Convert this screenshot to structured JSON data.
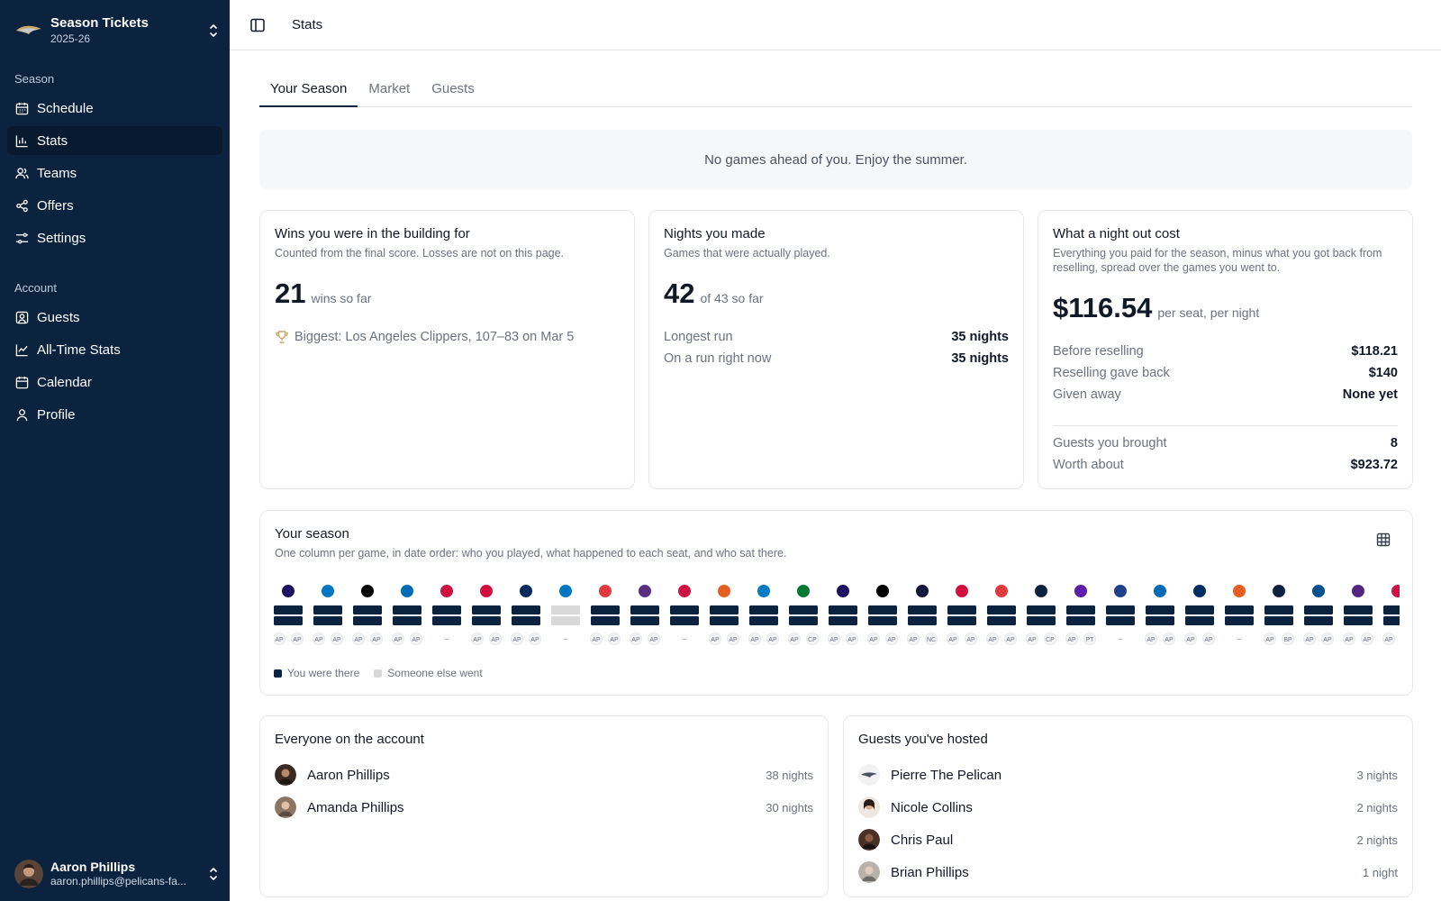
{
  "sidebar": {
    "team": {
      "name": "Season Tickets",
      "season": "2025-26"
    },
    "groups": [
      {
        "label": "Season"
      },
      {
        "label": "Account"
      }
    ],
    "items": [
      {
        "label": "Schedule",
        "icon": "calendar-days-icon"
      },
      {
        "label": "Stats",
        "icon": "bar-chart-icon",
        "active": true
      },
      {
        "label": "Teams",
        "icon": "users-icon"
      },
      {
        "label": "Offers",
        "icon": "share-icon"
      },
      {
        "label": "Settings",
        "icon": "sliders-icon"
      },
      {
        "label": "Guests",
        "icon": "user-square-icon"
      },
      {
        "label": "All-Time Stats",
        "icon": "line-chart-icon"
      },
      {
        "label": "Calendar",
        "icon": "calendar-icon"
      },
      {
        "label": "Profile",
        "icon": "user-icon"
      }
    ],
    "user": {
      "name": "Aaron Phillips",
      "email": "aaron.phillips@pelicans-fa..."
    }
  },
  "header": {
    "breadcrumb": "Stats"
  },
  "tabs": [
    {
      "label": "Your Season",
      "active": true
    },
    {
      "label": "Market"
    },
    {
      "label": "Guests"
    }
  ],
  "banner": "No games ahead of you. Enjoy the summer.",
  "wins": {
    "title": "Wins you were in the building for",
    "subtitle": "Counted from the final score. Losses are not on this page.",
    "value": "21",
    "suffix": "wins so far",
    "biggest": "Biggest: Los Angeles Clippers, 107–83 on Mar 5"
  },
  "nights": {
    "title": "Nights you made",
    "subtitle": "Games that were actually played.",
    "value": "42",
    "suffix": "of 43 so far",
    "rows": [
      {
        "label": "Longest run",
        "value": "35 nights"
      },
      {
        "label": "On a run right now",
        "value": "35 nights"
      }
    ]
  },
  "cost": {
    "title": "What a night out cost",
    "subtitle": "Everything you paid for the season, minus what you got back from reselling, spread over the games you went to.",
    "value": "$116.54",
    "suffix": "per seat, per night",
    "rows": [
      {
        "label": "Before reselling",
        "value": "$118.21"
      },
      {
        "label": "Reselling gave back",
        "value": "$140"
      },
      {
        "label": "Given away",
        "value": "None yet"
      }
    ],
    "guest_rows": [
      {
        "label": "Guests you brought",
        "value": "8"
      },
      {
        "label": "Worth about",
        "value": "$923.72"
      }
    ]
  },
  "season": {
    "title": "Your season",
    "subtitle": "One column per game, in date order: who you played, what happened to each seat, and who sat there.",
    "legend": [
      {
        "label": "You were there",
        "color": "#0c2340"
      },
      {
        "label": "Someone else went",
        "color": "#d9d9d9"
      }
    ],
    "games": [
      {
        "logo_color": "#1d1160",
        "seats": [
          "AP",
          "AP"
        ]
      },
      {
        "logo_color": "#0077c0",
        "seats": [
          "AP",
          "AP"
        ]
      },
      {
        "logo_color": "#000000",
        "seats": [
          "AP",
          "AP"
        ]
      },
      {
        "logo_color": "#006bb6",
        "seats": [
          "AP",
          "AP"
        ]
      },
      {
        "logo_color": "#ce1141",
        "seats": [
          "–"
        ]
      },
      {
        "logo_color": "#ce1141",
        "seats": [
          "AP",
          "AP"
        ]
      },
      {
        "logo_color": "#002b5c",
        "seats": [
          "AP",
          "AP"
        ]
      },
      {
        "logo_color": "#0077c0",
        "seats": [
          "–"
        ],
        "other": true
      },
      {
        "logo_color": "#e03a3e",
        "seats": [
          "AP",
          "AP"
        ]
      },
      {
        "logo_color": "#5a2d81",
        "seats": [
          "AP",
          "AP"
        ]
      },
      {
        "logo_color": "#ce1141",
        "seats": [
          "–"
        ]
      },
      {
        "logo_color": "#e56020",
        "seats": [
          "AP",
          "AP"
        ]
      },
      {
        "logo_color": "#007ac1",
        "seats": [
          "AP",
          "AP"
        ]
      },
      {
        "logo_color": "#007a33",
        "seats": [
          "AP",
          "CP"
        ]
      },
      {
        "logo_color": "#1d1160",
        "seats": [
          "AP",
          "AP"
        ]
      },
      {
        "logo_color": "#000000",
        "seats": [
          "AP",
          "AP"
        ]
      },
      {
        "logo_color": "#12173f",
        "seats": [
          "AP",
          "NC"
        ]
      },
      {
        "logo_color": "#ce1141",
        "seats": [
          "AP",
          "AP"
        ]
      },
      {
        "logo_color": "#e03a3e",
        "seats": [
          "AP",
          "AP"
        ]
      },
      {
        "logo_color": "#0e2240",
        "seats": [
          "AP",
          "CP"
        ]
      },
      {
        "logo_color": "#5e1fa6",
        "seats": [
          "AP",
          "PT"
        ]
      },
      {
        "logo_color": "#1d428a",
        "seats": [
          "–"
        ]
      },
      {
        "logo_color": "#006bb6",
        "seats": [
          "AP",
          "AP"
        ]
      },
      {
        "logo_color": "#002d62",
        "seats": [
          "AP",
          "AP"
        ]
      },
      {
        "logo_color": "#e56020",
        "seats": [
          "–"
        ]
      },
      {
        "logo_color": "#0c2340",
        "seats": [
          "AP",
          "BP"
        ]
      },
      {
        "logo_color": "#00538c",
        "seats": [
          "AP",
          "AP"
        ]
      },
      {
        "logo_color": "#552583",
        "seats": [
          "AP",
          "AP"
        ]
      },
      {
        "logo_color": "#ce1141",
        "seats": [
          "AP",
          "AP"
        ]
      }
    ]
  },
  "account_people": {
    "title": "Everyone on the account",
    "people": [
      {
        "name": "Aaron Phillips",
        "count": "38 nights",
        "avatar_color": "#3b2a22"
      },
      {
        "name": "Amanda Phillips",
        "count": "30 nights",
        "avatar_color": "#8d7563"
      }
    ]
  },
  "guests_hosted": {
    "title": "Guests you've hosted",
    "people": [
      {
        "name": "Pierre The Pelican",
        "count": "3 nights",
        "avatar_color": "#e6e6e6"
      },
      {
        "name": "Nicole Collins",
        "count": "2 nights",
        "avatar_color": "#c9a38b"
      },
      {
        "name": "Chris Paul",
        "count": "2 nights",
        "avatar_color": "#4a3126"
      },
      {
        "name": "Brian Phillips",
        "count": "1 night",
        "avatar_color": "#b9b2ab"
      }
    ]
  }
}
